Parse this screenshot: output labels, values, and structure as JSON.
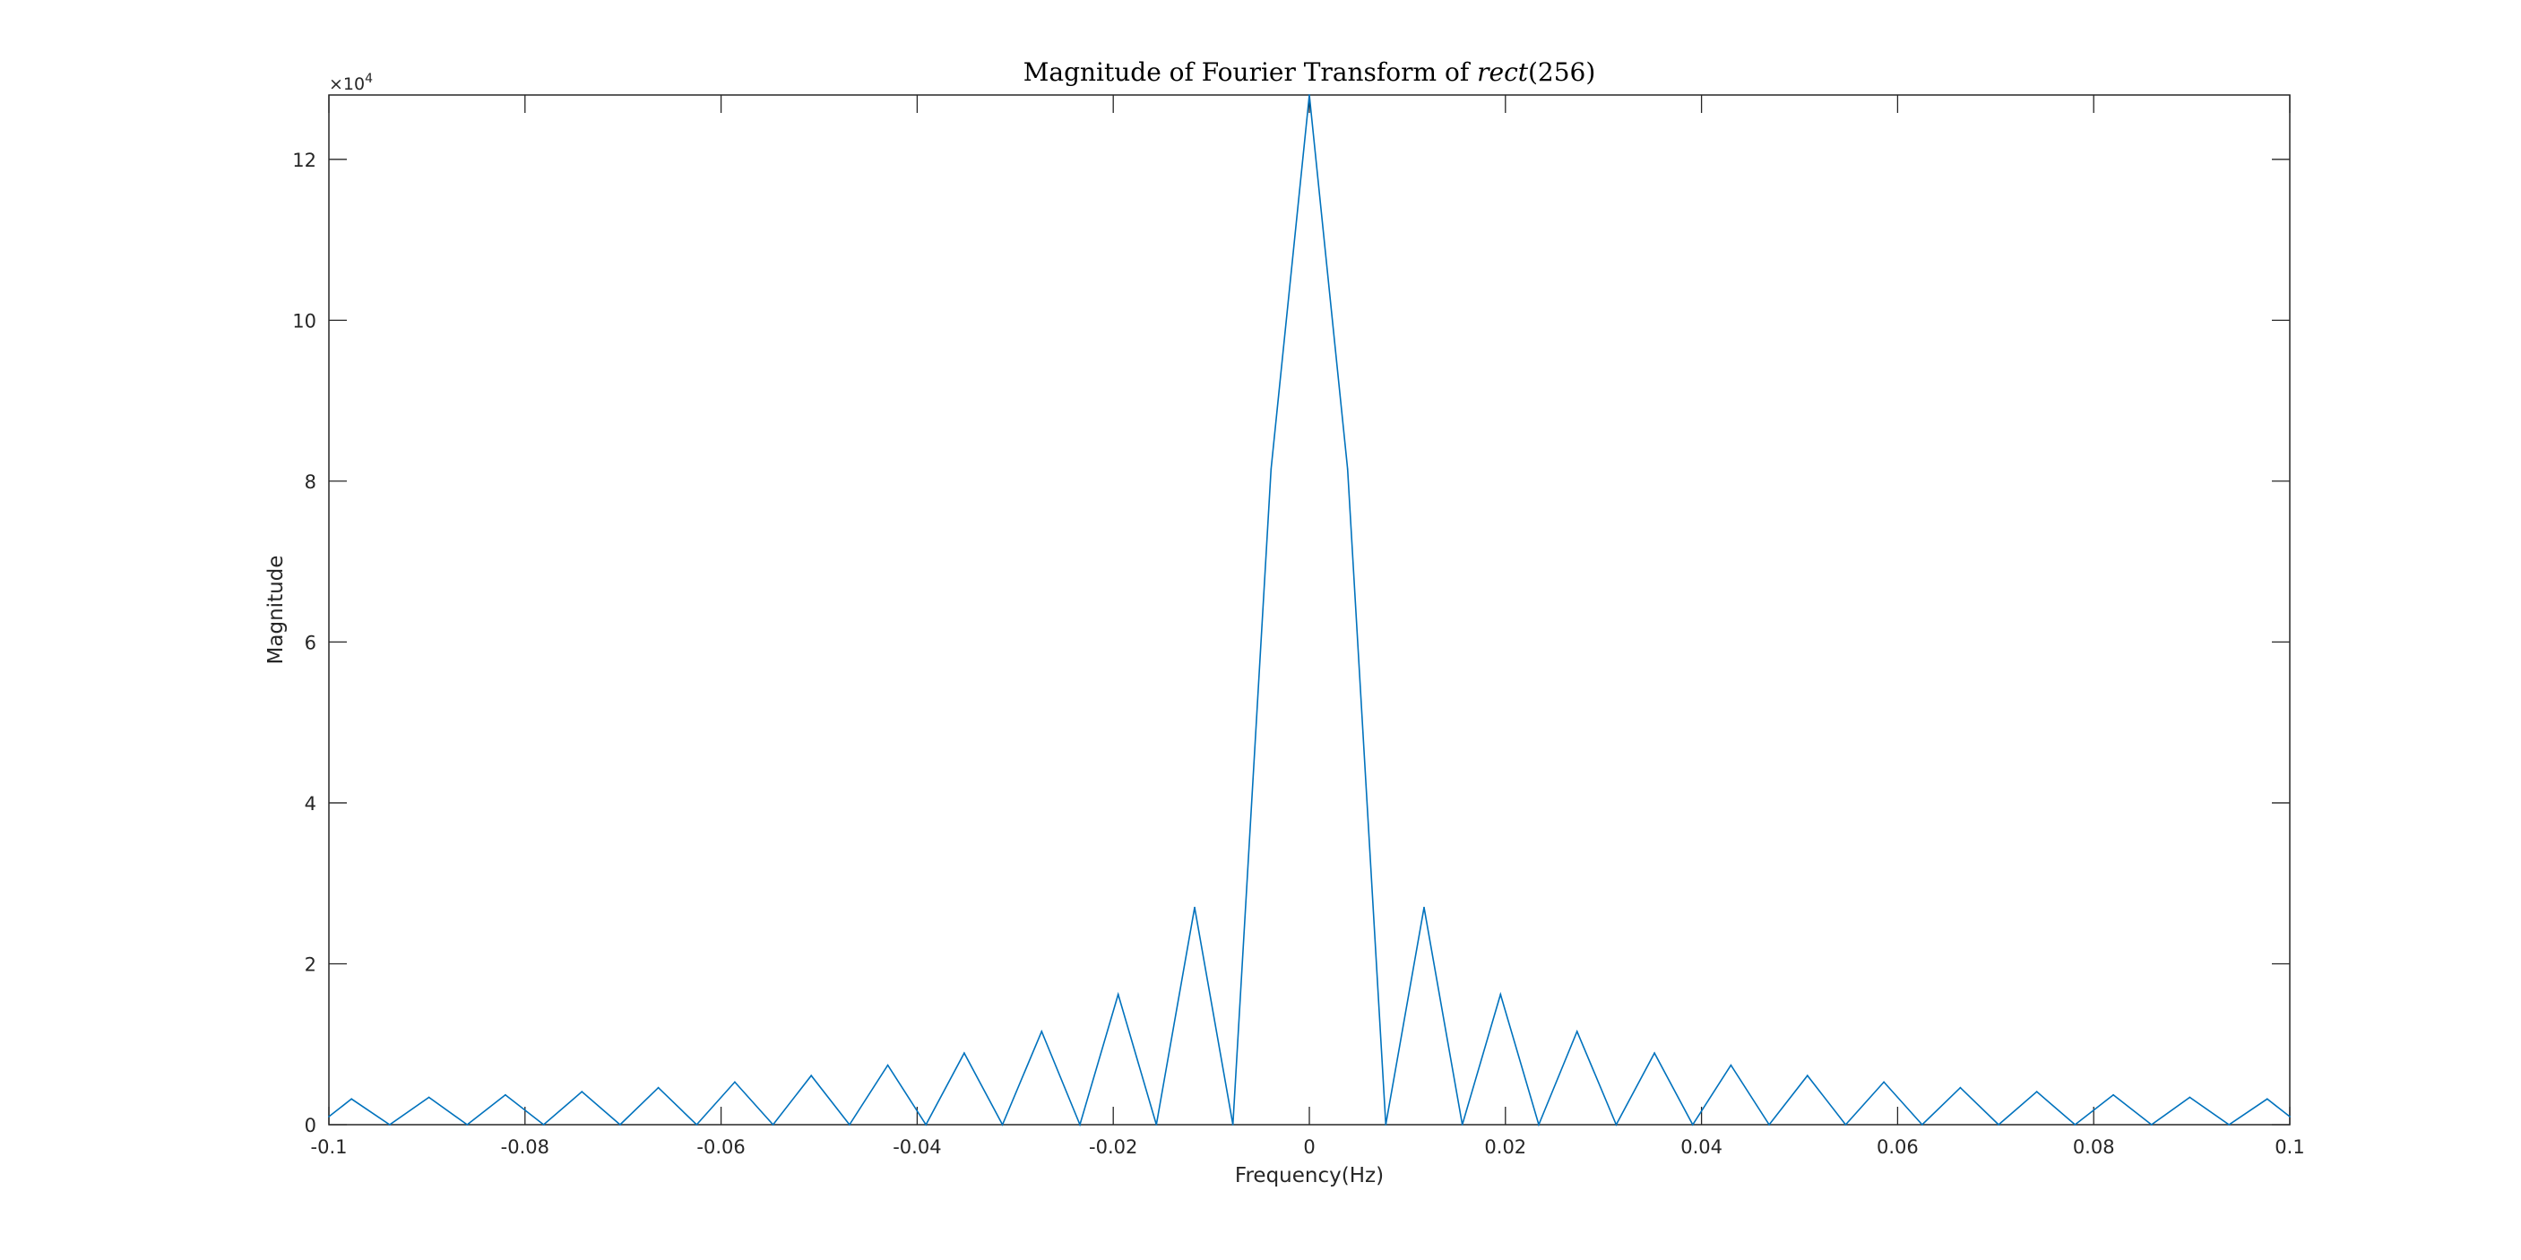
{
  "chart_data": {
    "type": "line",
    "title": "Magnitude of Fourier Transform of ",
    "title_math": "rect",
    "title_suffix": "(256)",
    "xlabel": "Frequency(Hz)",
    "ylabel": "Magnitude",
    "y_exponent_label": "×10",
    "y_exponent_power": "4",
    "xlim": [
      -0.1,
      0.1
    ],
    "ylim": [
      0,
      128000
    ],
    "xticks": [
      -0.1,
      -0.08,
      -0.06,
      -0.04,
      -0.02,
      0,
      0.02,
      0.04,
      0.06,
      0.08,
      0.1
    ],
    "xtick_labels": [
      "-0.1",
      "-0.08",
      "-0.06",
      "-0.04",
      "-0.02",
      "0",
      "0.02",
      "0.04",
      "0.06",
      "0.08",
      "0.1"
    ],
    "yticks": [
      0,
      20000,
      40000,
      60000,
      80000,
      100000,
      120000
    ],
    "ytick_labels": [
      "0",
      "2",
      "4",
      "6",
      "8",
      "10",
      "12"
    ],
    "grid": false,
    "colors": {
      "series": "#0072BD",
      "axes": "#262626"
    },
    "series": [
      {
        "x": [
          -0.1,
          -0.0977,
          -0.0938,
          -0.0898,
          -0.0859,
          -0.082,
          -0.0781,
          -0.0742,
          -0.0703,
          -0.0664,
          -0.0625,
          -0.0586,
          -0.0547,
          -0.0508,
          -0.0469,
          -0.043,
          -0.0391,
          -0.0352,
          -0.0313,
          -0.0273,
          -0.0234,
          -0.0195,
          -0.0156,
          -0.0117,
          -0.0078,
          -0.0039,
          0,
          0.0039,
          0.0078,
          0.0117,
          0.0156,
          0.0195,
          0.0234,
          0.0273,
          0.0313,
          0.0352,
          0.0391,
          0.043,
          0.0469,
          0.0508,
          0.0547,
          0.0586,
          0.0625,
          0.0664,
          0.0703,
          0.0742,
          0.0781,
          0.082,
          0.0859,
          0.0898,
          0.0938,
          0.0977,
          0.1
        ],
        "y": [
          1000,
          3200,
          0,
          3400,
          0,
          3700,
          0,
          4100,
          0,
          4600,
          0,
          5300,
          0,
          6100,
          0,
          7400,
          0,
          8900,
          0,
          11600,
          0,
          16200,
          0,
          27000,
          0,
          81500,
          128000,
          81500,
          0,
          27000,
          0,
          16200,
          0,
          11600,
          0,
          8900,
          0,
          7400,
          0,
          6100,
          0,
          5300,
          0,
          4600,
          0,
          4100,
          0,
          3700,
          0,
          3400,
          0,
          3200,
          1000
        ]
      }
    ]
  }
}
